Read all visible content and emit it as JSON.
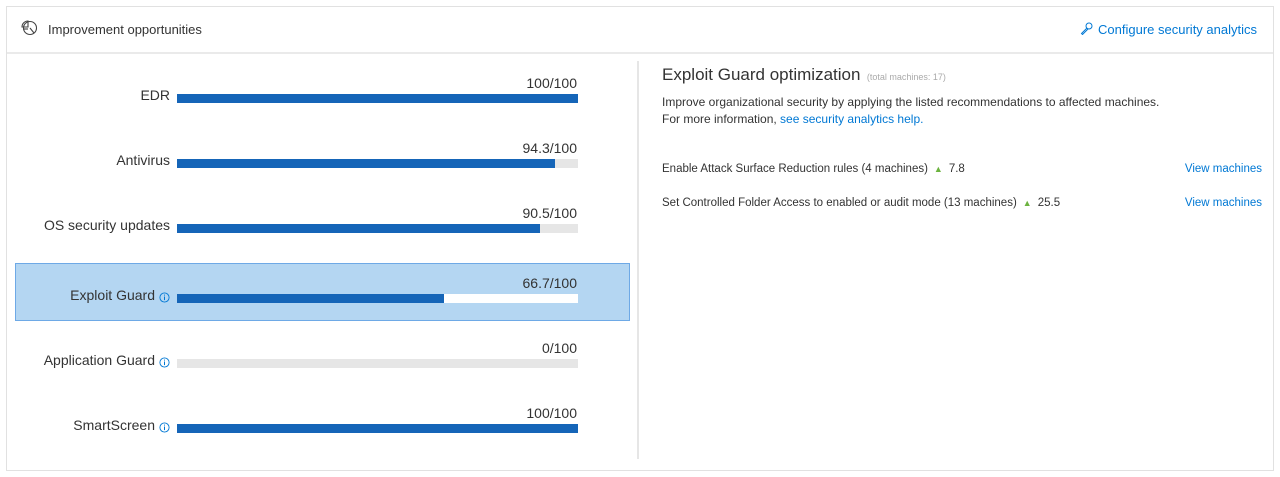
{
  "header": {
    "title": "Improvement opportunities",
    "icon": "pie-chart-icon",
    "configure_link": "Configure security analytics",
    "configure_icon": "wrench-icon"
  },
  "accent_color": "#0078d4",
  "bar_color": "#1565b8",
  "selected_bg": "#b4d6f2",
  "categories": [
    {
      "label": "EDR",
      "score": "100/100",
      "value": 100,
      "info": false,
      "selected": false
    },
    {
      "label": "Antivirus",
      "score": "94.3/100",
      "value": 94.3,
      "info": false,
      "selected": false
    },
    {
      "label": "OS security updates",
      "score": "90.5/100",
      "value": 90.5,
      "info": false,
      "selected": false
    },
    {
      "label": "Exploit Guard",
      "score": "66.7/100",
      "value": 66.7,
      "info": true,
      "selected": true
    },
    {
      "label": "Application Guard",
      "score": "0/100",
      "value": 0,
      "info": true,
      "selected": false
    },
    {
      "label": "SmartScreen",
      "score": "100/100",
      "value": 100,
      "info": true,
      "selected": false
    }
  ],
  "detail": {
    "title": "Exploit Guard optimization",
    "subtitle": "(total machines: 17)",
    "description": "Improve organizational security by applying the listed recommendations to affected machines.",
    "more_info_prefix": "For more information, ",
    "more_info_link": "see security analytics help.",
    "recommendations": [
      {
        "text": "Enable Attack Surface Reduction rules (4 machines)",
        "delta": "7.8",
        "action": "View machines"
      },
      {
        "text": "Set Controlled Folder Access to enabled or audit mode (13 machines)",
        "delta": "25.5",
        "action": "View machines"
      }
    ]
  }
}
